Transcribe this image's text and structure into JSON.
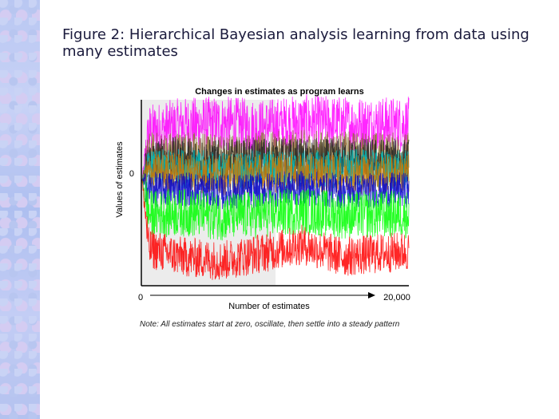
{
  "slide": {
    "title": "Figure 2: Hierarchical Bayesian analysis learning from data using many estimates",
    "note": "Note: All estimates start at zero, oscillate, then settle into a steady pattern"
  },
  "chart_data": {
    "type": "line",
    "title": "Changes in estimates as program learns",
    "xlabel": "Number of estimates",
    "ylabel": "Values of estimates",
    "x_ticks": [
      "0",
      "20,000"
    ],
    "y_ticks": [
      "0"
    ],
    "xlim": [
      0,
      20000
    ],
    "ylim": [
      -1.3,
      1.0
    ],
    "shaded_region_x": [
      0,
      10000
    ],
    "shaded_color": "#ececec",
    "legend": "none",
    "grid": false,
    "series": [
      {
        "color": "#ff00ff",
        "values": [
          0.0,
          0.6,
          0.68,
          0.7,
          0.66,
          0.72,
          0.7,
          0.69
        ]
      },
      {
        "color": "#8a6d2e",
        "values": [
          0.0,
          0.3,
          0.32,
          0.28,
          0.3,
          0.33,
          0.31,
          0.3
        ]
      },
      {
        "color": "#222222",
        "values": [
          0.0,
          0.22,
          0.25,
          0.2,
          0.24,
          0.22,
          0.23,
          0.22
        ]
      },
      {
        "color": "#00c0c0",
        "values": [
          0.0,
          0.12,
          0.15,
          0.1,
          0.13,
          0.12,
          0.14,
          0.12
        ]
      },
      {
        "color": "#cc7700",
        "values": [
          0.0,
          0.08,
          0.1,
          0.06,
          0.09,
          0.08,
          0.07,
          0.08
        ]
      },
      {
        "color": "#0000cc",
        "values": [
          0.0,
          -0.12,
          -0.1,
          -0.15,
          -0.12,
          -0.1,
          -0.13,
          -0.12
        ]
      },
      {
        "color": "#00ff00",
        "values": [
          0.0,
          -0.42,
          -0.4,
          -0.45,
          -0.42,
          -0.38,
          -0.43,
          -0.42
        ]
      },
      {
        "color": "#ff0000",
        "values": [
          0.0,
          -0.85,
          -0.95,
          -1.0,
          -0.9,
          -0.8,
          -0.95,
          -0.88
        ]
      }
    ],
    "x": [
      0,
      500,
      3000,
      6000,
      9000,
      12000,
      15000,
      20000
    ]
  }
}
